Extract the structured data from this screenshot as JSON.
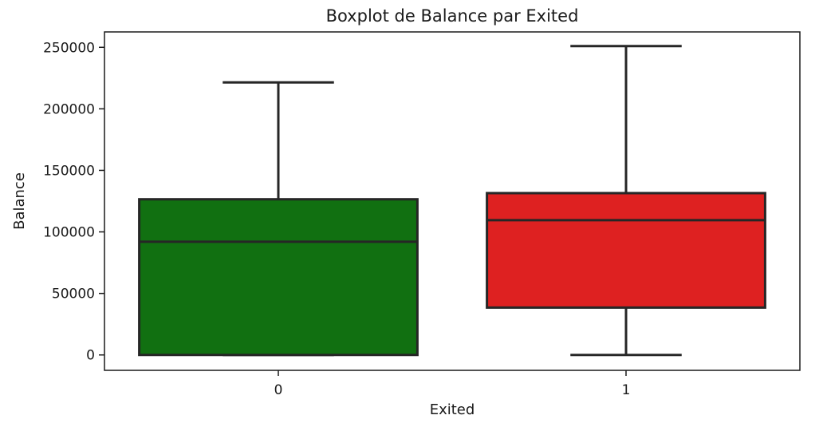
{
  "chart_data": {
    "type": "boxplot",
    "title": "Boxplot de Balance par Exited",
    "xlabel": "Exited",
    "ylabel": "Balance",
    "categories": [
      "0",
      "1"
    ],
    "ylim": [
      -12500,
      262500
    ],
    "yticks": [
      0,
      50000,
      100000,
      150000,
      200000,
      250000
    ],
    "ytick_labels": [
      "0",
      "50000",
      "100000",
      "150000",
      "200000",
      "250000"
    ],
    "grid": false,
    "boxes": [
      {
        "category": "0",
        "color": "#117011",
        "whisker_low": 0,
        "q1": 0,
        "median": 92000,
        "q3": 126500,
        "whisker_high": 221500
      },
      {
        "category": "1",
        "color": "#de2121",
        "whisker_low": 0,
        "q1": 38500,
        "median": 109500,
        "q3": 131500,
        "whisker_high": 251000
      }
    ],
    "edge_color": "#262626"
  }
}
